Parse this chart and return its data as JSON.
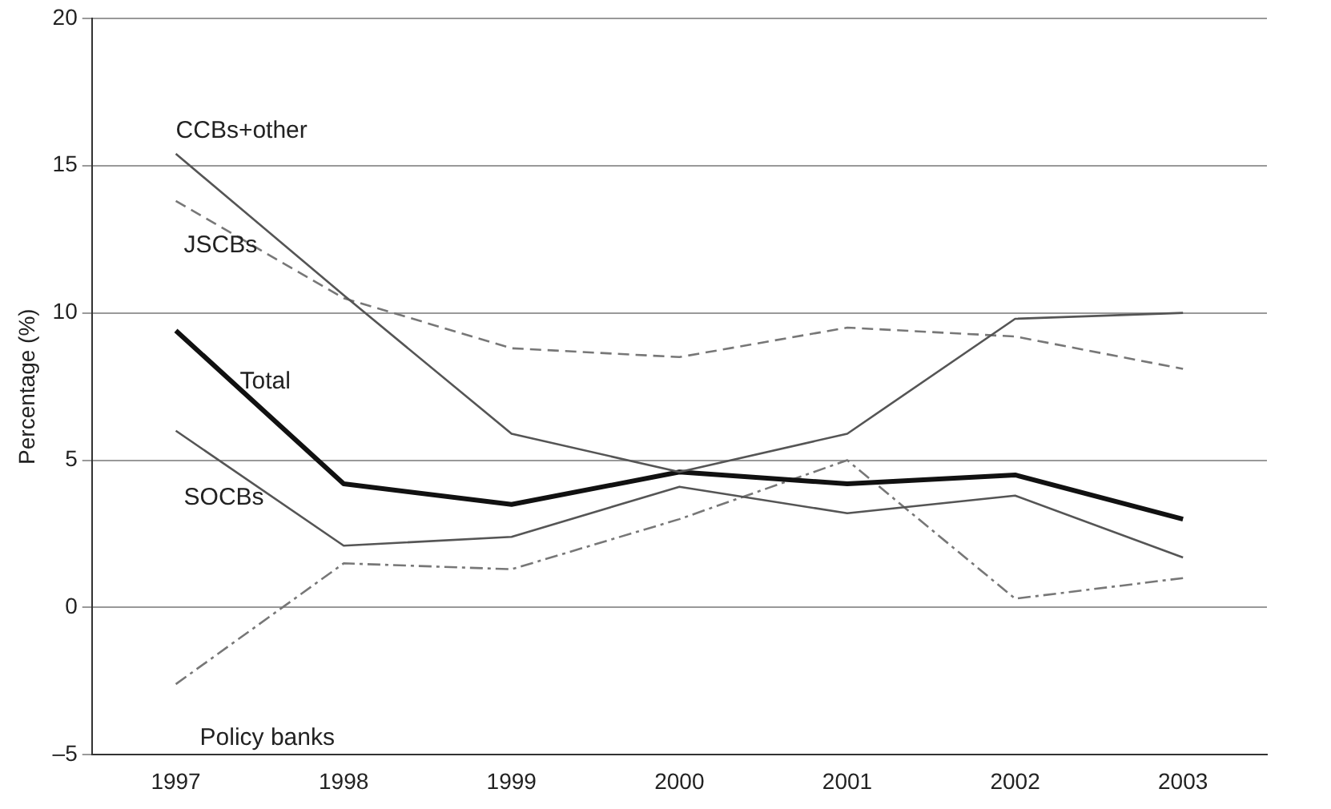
{
  "chart_data": {
    "type": "line",
    "ylabel": "Percentage (%)",
    "categories": [
      "1997",
      "1998",
      "1999",
      "2000",
      "2001",
      "2002",
      "2003"
    ],
    "series": [
      {
        "name": "CCBs+other",
        "color": "#555555",
        "line_style": "solid",
        "values": [
          15.4,
          10.6,
          5.9,
          4.6,
          5.9,
          9.8,
          10.0
        ]
      },
      {
        "name": "JSCBs",
        "color": "#777777",
        "line_style": "dashed",
        "values": [
          13.8,
          10.5,
          8.8,
          8.5,
          9.5,
          9.2,
          8.1
        ]
      },
      {
        "name": "Total",
        "color": "#111111",
        "line_style": "solid",
        "values": [
          9.4,
          4.2,
          3.5,
          4.6,
          4.2,
          4.5,
          3.0
        ]
      },
      {
        "name": "SOCBs",
        "color": "#555555",
        "line_style": "solid",
        "values": [
          6.0,
          2.1,
          2.4,
          4.1,
          3.2,
          3.8,
          1.7
        ]
      },
      {
        "name": "Policy banks",
        "color": "#777777",
        "line_style": "dashdot",
        "values": [
          -2.6,
          1.5,
          1.3,
          3.0,
          5.0,
          0.3,
          1.0
        ]
      }
    ],
    "ylim": [
      -5,
      20
    ],
    "yticks": [
      {
        "value": -5,
        "label": "–5"
      },
      0,
      5,
      10,
      15,
      20
    ],
    "grid": "y",
    "legend": false,
    "marker": "none"
  }
}
